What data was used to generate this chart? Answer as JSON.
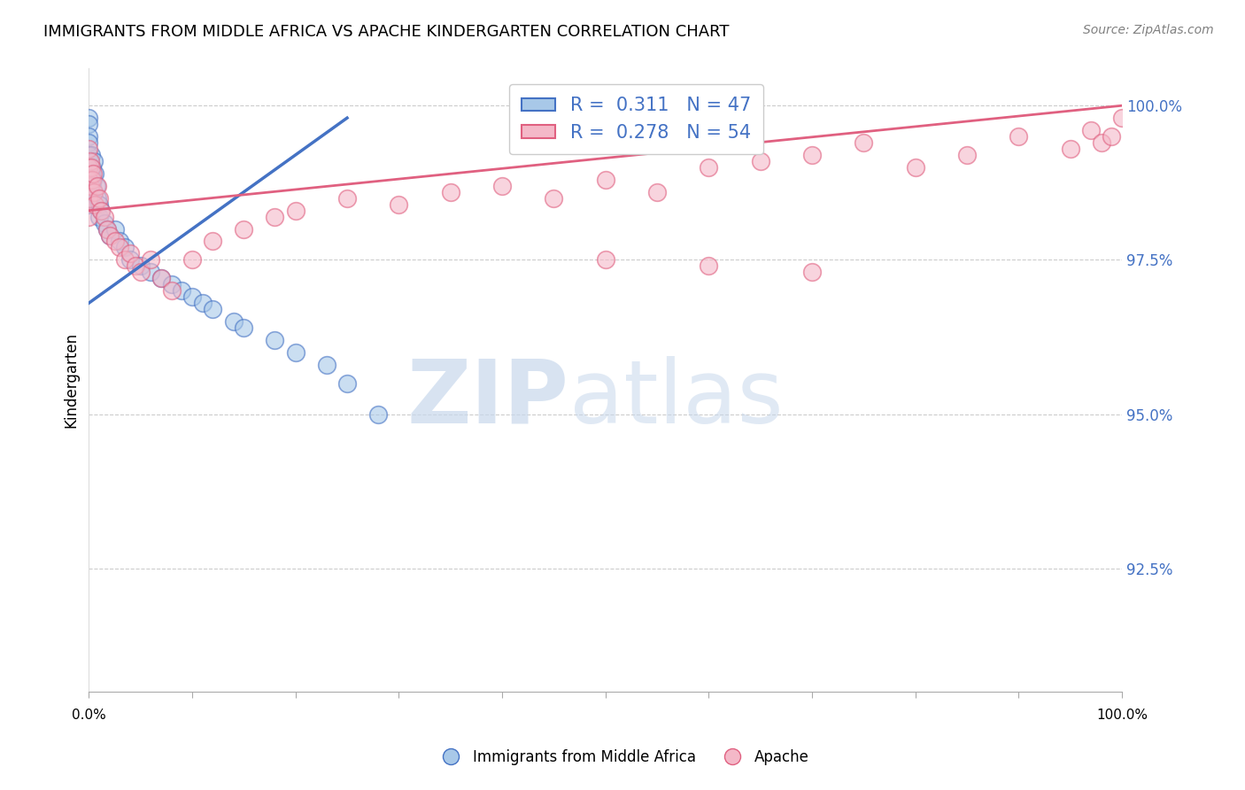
{
  "title": "IMMIGRANTS FROM MIDDLE AFRICA VS APACHE KINDERGARTEN CORRELATION CHART",
  "source": "Source: ZipAtlas.com",
  "ylabel": "Kindergarten",
  "legend_label1": "Immigrants from Middle Africa",
  "legend_label2": "Apache",
  "r1": 0.311,
  "n1": 47,
  "r2": 0.278,
  "n2": 54,
  "color_blue": "#a8c8e8",
  "color_pink": "#f4b8c8",
  "line_blue": "#4472c4",
  "line_pink": "#e06080",
  "blue_scatter_x": [
    0.0,
    0.0,
    0.0,
    0.0,
    0.0,
    0.0,
    0.0,
    0.0,
    0.0,
    0.1,
    0.1,
    0.1,
    0.2,
    0.2,
    0.3,
    0.3,
    0.4,
    0.5,
    0.5,
    0.6,
    0.7,
    0.8,
    1.0,
    1.0,
    1.2,
    1.5,
    1.8,
    2.0,
    2.5,
    3.0,
    3.5,
    4.0,
    5.0,
    6.0,
    7.0,
    8.0,
    9.0,
    10.0,
    11.0,
    12.0,
    14.0,
    15.0,
    18.0,
    20.0,
    23.0,
    25.0,
    28.0
  ],
  "blue_scatter_y": [
    99.8,
    99.7,
    99.5,
    99.4,
    99.2,
    99.0,
    98.8,
    98.6,
    98.4,
    99.0,
    98.8,
    98.5,
    99.2,
    98.9,
    99.0,
    98.7,
    98.8,
    99.1,
    98.6,
    98.9,
    98.7,
    98.5,
    98.4,
    98.2,
    98.3,
    98.1,
    98.0,
    97.9,
    98.0,
    97.8,
    97.7,
    97.5,
    97.4,
    97.3,
    97.2,
    97.1,
    97.0,
    96.9,
    96.8,
    96.7,
    96.5,
    96.4,
    96.2,
    96.0,
    95.8,
    95.5,
    95.0
  ],
  "pink_scatter_x": [
    0.0,
    0.0,
    0.0,
    0.0,
    0.0,
    0.1,
    0.1,
    0.2,
    0.3,
    0.4,
    0.5,
    0.6,
    0.8,
    1.0,
    1.2,
    1.5,
    1.8,
    2.0,
    2.5,
    3.0,
    3.5,
    4.0,
    4.5,
    5.0,
    6.0,
    7.0,
    8.0,
    10.0,
    12.0,
    15.0,
    18.0,
    20.0,
    25.0,
    30.0,
    35.0,
    40.0,
    45.0,
    50.0,
    55.0,
    60.0,
    65.0,
    70.0,
    75.0,
    80.0,
    85.0,
    90.0,
    95.0,
    97.0,
    98.0,
    99.0,
    100.0,
    50.0,
    60.0,
    70.0
  ],
  "pink_scatter_y": [
    99.3,
    99.0,
    98.8,
    98.5,
    98.2,
    99.1,
    98.7,
    99.0,
    98.8,
    98.9,
    98.6,
    98.4,
    98.7,
    98.5,
    98.3,
    98.2,
    98.0,
    97.9,
    97.8,
    97.7,
    97.5,
    97.6,
    97.4,
    97.3,
    97.5,
    97.2,
    97.0,
    97.5,
    97.8,
    98.0,
    98.2,
    98.3,
    98.5,
    98.4,
    98.6,
    98.7,
    98.5,
    98.8,
    98.6,
    99.0,
    99.1,
    99.2,
    99.4,
    99.0,
    99.2,
    99.5,
    99.3,
    99.6,
    99.4,
    99.5,
    99.8,
    97.5,
    97.4,
    97.3
  ],
  "blue_line_x0": 0.0,
  "blue_line_y0": 96.8,
  "blue_line_x1": 25.0,
  "blue_line_y1": 99.8,
  "pink_line_x0": 0.0,
  "pink_line_y0": 98.3,
  "pink_line_x1": 100.0,
  "pink_line_y1": 100.0,
  "yticks": [
    92.5,
    95.0,
    97.5,
    100.0
  ],
  "ytick_labels": [
    "92.5%",
    "95.0%",
    "97.5%",
    "100.0%"
  ],
  "xmin": 0,
  "xmax": 100,
  "ymin": 90.5,
  "ymax": 100.6
}
